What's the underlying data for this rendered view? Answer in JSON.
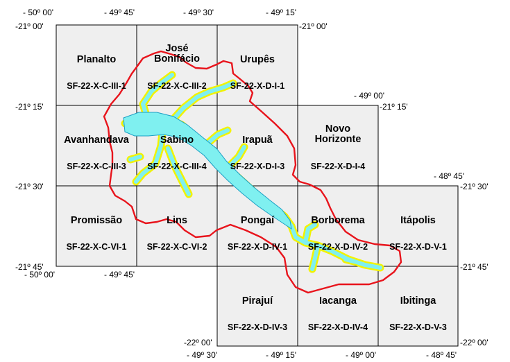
{
  "colors": {
    "sheet_fill": "#efefef",
    "sheet_border": "#000000",
    "buffer_line": "#e8141c",
    "reservoir_outline": "#f2f200",
    "reservoir_fill": "#7ff0f0",
    "reservoir_edge": "#1a9fc4"
  },
  "coordinates": {
    "top_longitudes": [
      "- 50º 00'",
      "- 49º 45'",
      "- 49º 30'",
      "- 49º 15'"
    ],
    "left_latitudes": [
      "-21º 00'",
      "-21º 15'",
      "-21º 30'",
      "-21º 45'"
    ],
    "mid_left_longitudes": [
      "- 50º 00'",
      "- 49º 45'"
    ],
    "inner_labels": [
      "-21º 00'",
      "- 49º 00'",
      "-21º 15'",
      "- 48º 45'",
      "-21º 30'",
      "-21º 45'"
    ],
    "bottom_latitudes": [
      "-22º 00'",
      "-22º 00'"
    ],
    "bottom_longitudes": [
      "- 49º 30'",
      "- 49º 15'",
      "- 49º 00'",
      "- 48º 45'"
    ]
  },
  "sheets": [
    {
      "name": "Planalto",
      "code": "SF-22-X-C-III-1"
    },
    {
      "name": "José\nBonifácio",
      "code": "SF-22-X-C-III-2"
    },
    {
      "name": "Urupês",
      "code": "SF-22-X-D-I-1"
    },
    {
      "name": "Avanhandava",
      "code": "SF-22-X-C-III-3"
    },
    {
      "name": "Sabino",
      "code": "SF-22-X-C-III-4"
    },
    {
      "name": "Irapuã",
      "code": "SF-22-X-D-I-3"
    },
    {
      "name": "Novo\nHorizonte",
      "code": "SF-22-X-D-I-4"
    },
    {
      "name": "Promissão",
      "code": "SF-22-X-C-VI-1"
    },
    {
      "name": "Lins",
      "code": "SF-22-X-C-VI-2"
    },
    {
      "name": "Pongaí",
      "code": "SF-22-X-D-IV-1"
    },
    {
      "name": "Borborema",
      "code": "SF-22-X-D-IV-2"
    },
    {
      "name": "Itápolis",
      "code": "SF-22-X-D-V-1"
    },
    {
      "name": "Pirajuí",
      "code": "SF-22-X-D-IV-3"
    },
    {
      "name": "Iacanga",
      "code": "SF-22-X-D-IV-4"
    },
    {
      "name": "Ibitinga",
      "code": "SF-22-X-D-V-3"
    }
  ]
}
